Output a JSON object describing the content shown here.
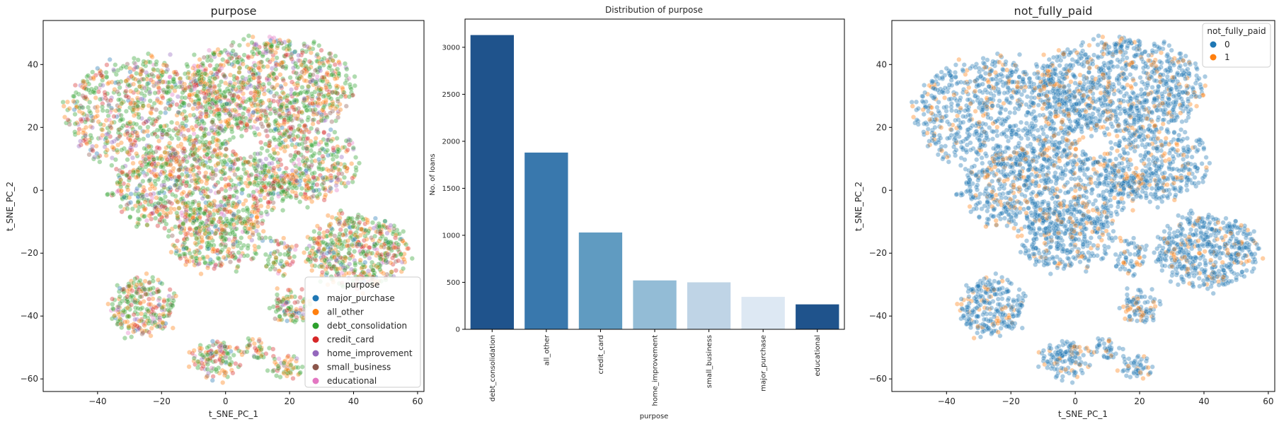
{
  "chart_data": [
    {
      "type": "scatter",
      "title": "purpose",
      "xlabel": "t_SNE_PC_1",
      "ylabel": "t_SNE_PC_2",
      "xlim": [
        -57,
        62
      ],
      "ylim": [
        -64,
        54
      ],
      "xticks": [
        -40,
        -20,
        0,
        20,
        40,
        60
      ],
      "yticks": [
        -60,
        -40,
        -20,
        0,
        20,
        40
      ],
      "grid": false,
      "legend": {
        "title": "purpose",
        "placement": "lower-right",
        "entries": [
          {
            "label": "major_purchase",
            "color": "#1f77b4"
          },
          {
            "label": "all_other",
            "color": "#ff7f0e"
          },
          {
            "label": "debt_consolidation",
            "color": "#2ca02c"
          },
          {
            "label": "credit_card",
            "color": "#d62728"
          },
          {
            "label": "home_improvement",
            "color": "#9467bd"
          },
          {
            "label": "small_business",
            "color": "#8c564b"
          },
          {
            "label": "educational",
            "color": "#e377c2"
          }
        ]
      },
      "category_weights": [
        0.036,
        0.196,
        0.327,
        0.108,
        0.054,
        0.052,
        0.028
      ],
      "clusters": [
        {
          "cx": -23,
          "cy": 24,
          "rx": 28,
          "ry": 18,
          "n": 900
        },
        {
          "cx": 14,
          "cy": 33,
          "rx": 26,
          "ry": 15,
          "n": 900
        },
        {
          "cx": -8,
          "cy": 0,
          "rx": 28,
          "ry": 14,
          "n": 800
        },
        {
          "cx": 25,
          "cy": 8,
          "rx": 16,
          "ry": 12,
          "n": 400
        },
        {
          "cx": -3,
          "cy": -15,
          "rx": 14,
          "ry": 10,
          "n": 300
        },
        {
          "cx": 41,
          "cy": -19,
          "rx": 16,
          "ry": 11,
          "n": 520
        },
        {
          "cx": -26,
          "cy": -37,
          "rx": 10,
          "ry": 9,
          "n": 260
        },
        {
          "cx": 20,
          "cy": -37,
          "rx": 5,
          "ry": 5,
          "n": 90
        },
        {
          "cx": -3,
          "cy": -54,
          "rx": 7,
          "ry": 5,
          "n": 130
        },
        {
          "cx": 10,
          "cy": -51,
          "rx": 4,
          "ry": 3,
          "n": 40
        },
        {
          "cx": 19,
          "cy": -56,
          "rx": 4,
          "ry": 3,
          "n": 50
        },
        {
          "cx": 17,
          "cy": -21,
          "rx": 5,
          "ry": 5,
          "n": 60
        }
      ]
    },
    {
      "type": "bar",
      "title": "Distribution of purpose",
      "xlabel": "purpose",
      "ylabel": "No. of loans",
      "categories": [
        "debt_consolidation",
        "all_other",
        "credit_card",
        "home_improvement",
        "small_business",
        "major_purchase",
        "educational"
      ],
      "values": [
        3130,
        1880,
        1030,
        520,
        500,
        345,
        265
      ],
      "colors": [
        "#1f538c",
        "#3978ad",
        "#609bc1",
        "#93bcd6",
        "#bfd4e6",
        "#dde8f3",
        "#1f538c"
      ],
      "ylim": [
        0,
        3300
      ],
      "yticks": [
        0,
        500,
        1000,
        1500,
        2000,
        2500,
        3000
      ],
      "grid": false
    },
    {
      "type": "scatter",
      "title": "not_fully_paid",
      "xlabel": "t_SNE_PC_1",
      "ylabel": "t_SNE_PC_2",
      "xlim": [
        -57,
        62
      ],
      "ylim": [
        -64,
        54
      ],
      "xticks": [
        -40,
        -20,
        0,
        20,
        40,
        60
      ],
      "yticks": [
        -60,
        -40,
        -20,
        0,
        20,
        40
      ],
      "grid": false,
      "legend": {
        "title": "not_fully_paid",
        "placement": "upper-right",
        "entries": [
          {
            "label": "0",
            "color": "#1f77b4"
          },
          {
            "label": "1",
            "color": "#ff7f0e"
          }
        ]
      },
      "category_weights": [
        0.84,
        0.16
      ]
    }
  ]
}
